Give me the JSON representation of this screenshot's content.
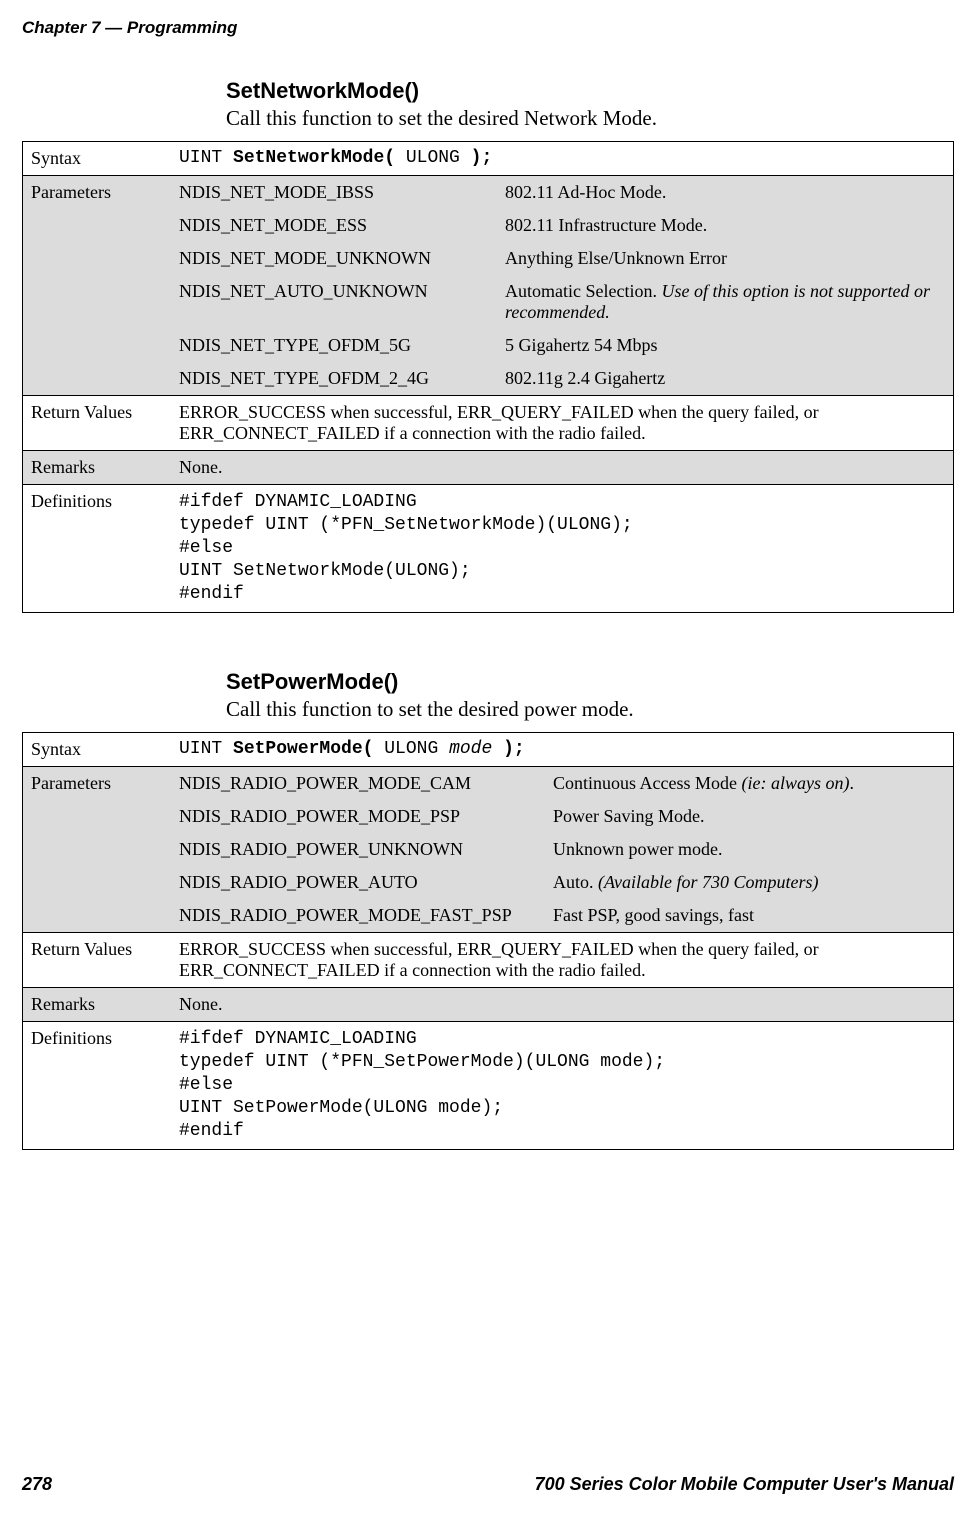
{
  "page": {
    "running_chapter": "Chapter 7",
    "running_dash": "  —  ",
    "running_section": "Programming",
    "page_number": "278",
    "footer_title": "700 Series Color Mobile Computer User's Manual"
  },
  "sec1": {
    "title": "SetNetworkMode()",
    "subtitle": "Call this function to set the desired Network Mode.",
    "labels": {
      "syntax": "Syntax",
      "parameters": "Parameters",
      "return_values": "Return Values",
      "remarks": "Remarks",
      "definitions": "Definitions"
    },
    "syntax": {
      "p0": "UINT ",
      "p1": "SetNetworkMode( ",
      "p2": "ULONG ",
      "p3": ");"
    },
    "params": [
      {
        "name": "NDIS_NET_MODE_IBSS",
        "desc": "802.11 Ad-Hoc Mode.",
        "desc_it": ""
      },
      {
        "name": "NDIS_NET_MODE_ESS",
        "desc": "802.11 Infrastructure Mode.",
        "desc_it": ""
      },
      {
        "name": "NDIS_NET_MODE_UNKNOWN",
        "desc": "Anything Else/Unknown Error",
        "desc_it": ""
      },
      {
        "name": "NDIS_NET_AUTO_UNKNOWN",
        "desc": "Automatic Selection. ",
        "desc_it": "Use of this option is not supported or recommended."
      },
      {
        "name": "NDIS_NET_TYPE_OFDM_5G",
        "desc": "5 Gigahertz 54 Mbps",
        "desc_it": ""
      },
      {
        "name": "NDIS_NET_TYPE_OFDM_2_4G",
        "desc": "802.11g 2.4 Gigahertz",
        "desc_it": ""
      }
    ],
    "return_values": "ERROR_SUCCESS when successful, ERR_QUERY_FAILED when the query failed, or ERR_CONNECT_FAILED if a connection with the radio failed.",
    "remarks": "None.",
    "definitions": "#ifdef DYNAMIC_LOADING\ntypedef UINT (*PFN_SetNetworkMode)(ULONG);\n#else\nUINT SetNetworkMode(ULONG);\n#endif"
  },
  "sec2": {
    "title": "SetPowerMode()",
    "subtitle": "Call this function to set the desired power mode.",
    "labels": {
      "syntax": "Syntax",
      "parameters": "Parameters",
      "return_values": "Return Values",
      "remarks": "Remarks",
      "definitions": "Definitions"
    },
    "syntax": {
      "p0": "UINT ",
      "p1": "SetPowerMode( ",
      "p2": "ULONG ",
      "p3": "mode ",
      "p4": ");"
    },
    "params": [
      {
        "name": "NDIS_RADIO_POWER_MODE_CAM",
        "desc": "Continuous Access Mode ",
        "desc_it": "(ie: always on)",
        "tail": "."
      },
      {
        "name": "NDIS_RADIO_POWER_MODE_PSP",
        "desc": "Power Saving Mode.",
        "desc_it": "",
        "tail": ""
      },
      {
        "name": "NDIS_RADIO_POWER_UNKNOWN",
        "desc": "Unknown power mode.",
        "desc_it": "",
        "tail": ""
      },
      {
        "name": "NDIS_RADIO_POWER_AUTO",
        "desc": "Auto. ",
        "desc_it": "(Available for 730 Computers)",
        "tail": ""
      },
      {
        "name": "NDIS_RADIO_POWER_MODE_FAST_PSP",
        "desc": "Fast PSP, good savings, fast",
        "desc_it": "",
        "tail": ""
      }
    ],
    "return_values": "ERROR_SUCCESS when successful, ERR_QUERY_FAILED when the query failed, or ERR_CONNECT_FAILED if a connection with the radio failed.",
    "remarks": "None.",
    "definitions": "#ifdef DYNAMIC_LOADING\ntypedef UINT (*PFN_SetPowerMode)(ULONG mode);\n#else\nUINT SetPowerMode(ULONG mode);\n#endif"
  }
}
